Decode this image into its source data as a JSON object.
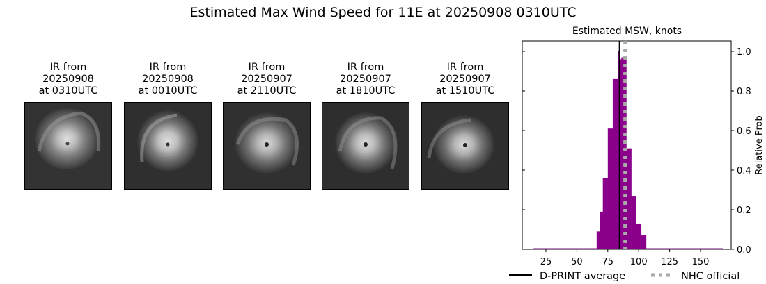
{
  "figure": {
    "title": "Estimated Max Wind Speed for 11E at 20250908 0310UTC"
  },
  "ir_panels": [
    {
      "line1": "IR from",
      "line2": "20250908",
      "line3": "at 0310UTC"
    },
    {
      "line1": "IR from",
      "line2": "20250908",
      "line3": "at 0010UTC"
    },
    {
      "line1": "IR from",
      "line2": "20250907",
      "line3": "at 2110UTC"
    },
    {
      "line1": "IR from",
      "line2": "20250907",
      "line3": "at 1810UTC"
    },
    {
      "line1": "IR from",
      "line2": "20250907",
      "line3": "at 1510UTC"
    }
  ],
  "colors": {
    "histogram": "#8b008b",
    "dprint_line": "#000000",
    "nhc_line": "#aaaaaa"
  },
  "chart_data": {
    "type": "bar",
    "title": "Estimated MSW, knots",
    "xlabel": "",
    "ylabel": "Relative Prob",
    "xlim": [
      5,
      172
    ],
    "ylim": [
      0,
      1.05
    ],
    "xticks": [
      25,
      50,
      75,
      100,
      125,
      150
    ],
    "yticks": [
      0.0,
      0.2,
      0.4,
      0.6,
      0.8,
      1.0
    ],
    "ytick_labels": [
      "0.0",
      "0.2",
      "0.4",
      "0.6",
      "0.8",
      "1.0"
    ],
    "grid": false,
    "bin_edges": [
      66,
      68.5,
      71,
      75,
      79,
      83,
      84,
      86,
      90,
      94,
      98,
      102,
      106,
      108
    ],
    "values": [
      0.09,
      0.19,
      0.36,
      0.61,
      0.86,
      1.0,
      0.96,
      0.97,
      0.51,
      0.27,
      0.13,
      0.07,
      0.0
    ],
    "baseline_range": [
      15,
      168
    ],
    "dprint_average": 84.5,
    "nhc_official": 89,
    "legend": [
      {
        "label": "D-PRINT average",
        "style": "solid black line"
      },
      {
        "label": "NHC official",
        "style": "dotted gray line"
      }
    ],
    "legend_position": "below"
  }
}
